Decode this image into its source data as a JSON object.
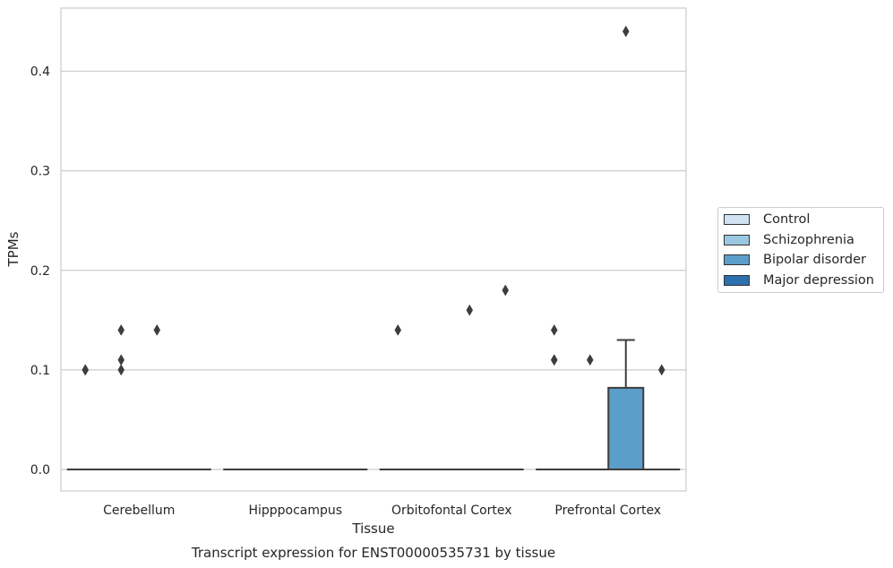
{
  "chart_data": {
    "type": "box",
    "title": "Transcript expression for ENST00000535731 by tissue",
    "xlabel": "Tissue",
    "ylabel": "TPMs",
    "categories": [
      "Cerebellum",
      "Hipppocampus",
      "Orbitofontal Cortex",
      "Prefrontal Cortex"
    ],
    "ylim": [
      -0.022,
      0.465
    ],
    "yticks": [
      0.0,
      0.1,
      0.2,
      0.3,
      0.4
    ],
    "ytick_labels": [
      "0.0",
      "0.1",
      "0.2",
      "0.3",
      "0.4"
    ],
    "grid": true,
    "legend_position": "right",
    "series": [
      {
        "name": "Control",
        "color": "#d1e2f2",
        "boxes": [
          {
            "category": "Cerebellum",
            "q1": 0,
            "median": 0,
            "q3": 0,
            "whisker_low": 0,
            "whisker_high": 0,
            "outliers": [
              0.1,
              0.1
            ]
          },
          {
            "category": "Hipppocampus",
            "q1": 0,
            "median": 0,
            "q3": 0,
            "whisker_low": 0,
            "whisker_high": 0,
            "outliers": []
          },
          {
            "category": "Orbitofontal Cortex",
            "q1": 0,
            "median": 0,
            "q3": 0,
            "whisker_low": 0,
            "whisker_high": 0,
            "outliers": [
              0.14
            ]
          },
          {
            "category": "Prefrontal Cortex",
            "q1": 0,
            "median": 0,
            "q3": 0,
            "whisker_low": 0,
            "whisker_high": 0,
            "outliers": [
              0.14,
              0.11,
              0.11
            ]
          }
        ]
      },
      {
        "name": "Schizophrenia",
        "color": "#9ac8e0",
        "boxes": [
          {
            "category": "Cerebellum",
            "q1": 0,
            "median": 0,
            "q3": 0,
            "whisker_low": 0,
            "whisker_high": 0,
            "outliers": [
              0.14,
              0.11,
              0.1
            ]
          },
          {
            "category": "Hipppocampus",
            "q1": 0,
            "median": 0,
            "q3": 0,
            "whisker_low": 0,
            "whisker_high": 0,
            "outliers": []
          },
          {
            "category": "Orbitofontal Cortex",
            "q1": 0,
            "median": 0,
            "q3": 0,
            "whisker_low": 0,
            "whisker_high": 0,
            "outliers": []
          },
          {
            "category": "Prefrontal Cortex",
            "q1": 0,
            "median": 0,
            "q3": 0,
            "whisker_low": 0,
            "whisker_high": 0,
            "outliers": [
              0.11
            ]
          }
        ]
      },
      {
        "name": "Bipolar disorder",
        "color": "#5a9ec9",
        "boxes": [
          {
            "category": "Cerebellum",
            "q1": 0,
            "median": 0,
            "q3": 0,
            "whisker_low": 0,
            "whisker_high": 0,
            "outliers": [
              0.14
            ]
          },
          {
            "category": "Hipppocampus",
            "q1": 0,
            "median": 0,
            "q3": 0,
            "whisker_low": 0,
            "whisker_high": 0,
            "outliers": []
          },
          {
            "category": "Orbitofontal Cortex",
            "q1": 0,
            "median": 0,
            "q3": 0,
            "whisker_low": 0,
            "whisker_high": 0,
            "outliers": [
              0.16
            ]
          },
          {
            "category": "Prefrontal Cortex",
            "q1": 0,
            "median": 0,
            "q3": 0.082,
            "whisker_low": 0,
            "whisker_high": 0.13,
            "outliers": [
              0.44
            ]
          }
        ]
      },
      {
        "name": "Major depression",
        "color": "#2c6fad",
        "boxes": [
          {
            "category": "Cerebellum",
            "q1": 0,
            "median": 0,
            "q3": 0,
            "whisker_low": 0,
            "whisker_high": 0,
            "outliers": []
          },
          {
            "category": "Hipppocampus",
            "q1": 0,
            "median": 0,
            "q3": 0,
            "whisker_low": 0,
            "whisker_high": 0,
            "outliers": []
          },
          {
            "category": "Orbitofontal Cortex",
            "q1": 0,
            "median": 0,
            "q3": 0,
            "whisker_low": 0,
            "whisker_high": 0,
            "outliers": [
              0.18
            ]
          },
          {
            "category": "Prefrontal Cortex",
            "q1": 0,
            "median": 0,
            "q3": 0,
            "whisker_low": 0,
            "whisker_high": 0,
            "outliers": [
              0.1
            ]
          }
        ]
      }
    ]
  }
}
